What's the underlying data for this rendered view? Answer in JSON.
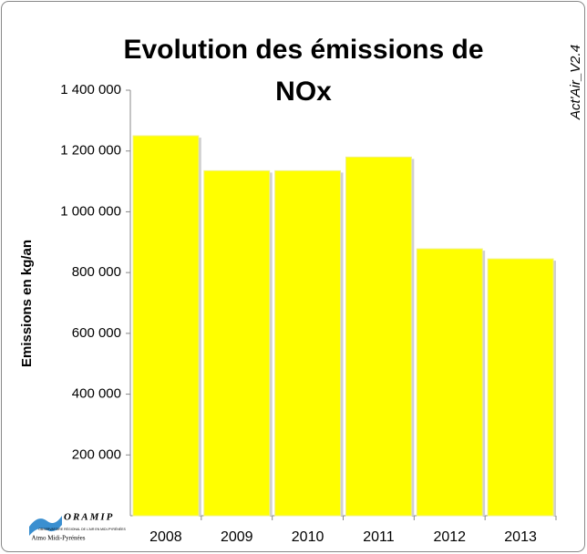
{
  "chart_data": {
    "type": "bar",
    "title": "Evolution des émissions de NOx",
    "y_label": "Emissions en kg/an",
    "categories": [
      "2008",
      "2009",
      "2010",
      "2011",
      "2012",
      "2013"
    ],
    "values": [
      1250000,
      1135000,
      1135000,
      1180000,
      878000,
      845000
    ],
    "color": "#ffff00",
    "ylim": [
      0,
      1400000
    ],
    "yticks": [
      {
        "value": 200000,
        "label": "200 000"
      },
      {
        "value": 400000,
        "label": "400 000"
      },
      {
        "value": 600000,
        "label": "600 000"
      },
      {
        "value": 800000,
        "label": "800 000"
      },
      {
        "value": 1000000,
        "label": "1 000 000"
      },
      {
        "value": 1200000,
        "label": "1 200 000"
      },
      {
        "value": 1400000,
        "label": "1 400 000"
      }
    ],
    "grid": false
  },
  "version_label": "Act'Air_V2.4",
  "logo": {
    "name": "ORAMIP",
    "subtitle": "OBSERVATOIRE RÉGIONAL DE L'AIR EN MIDI-PYRÉNÉES",
    "caption": "Atmo Midi-Pyrénées"
  }
}
